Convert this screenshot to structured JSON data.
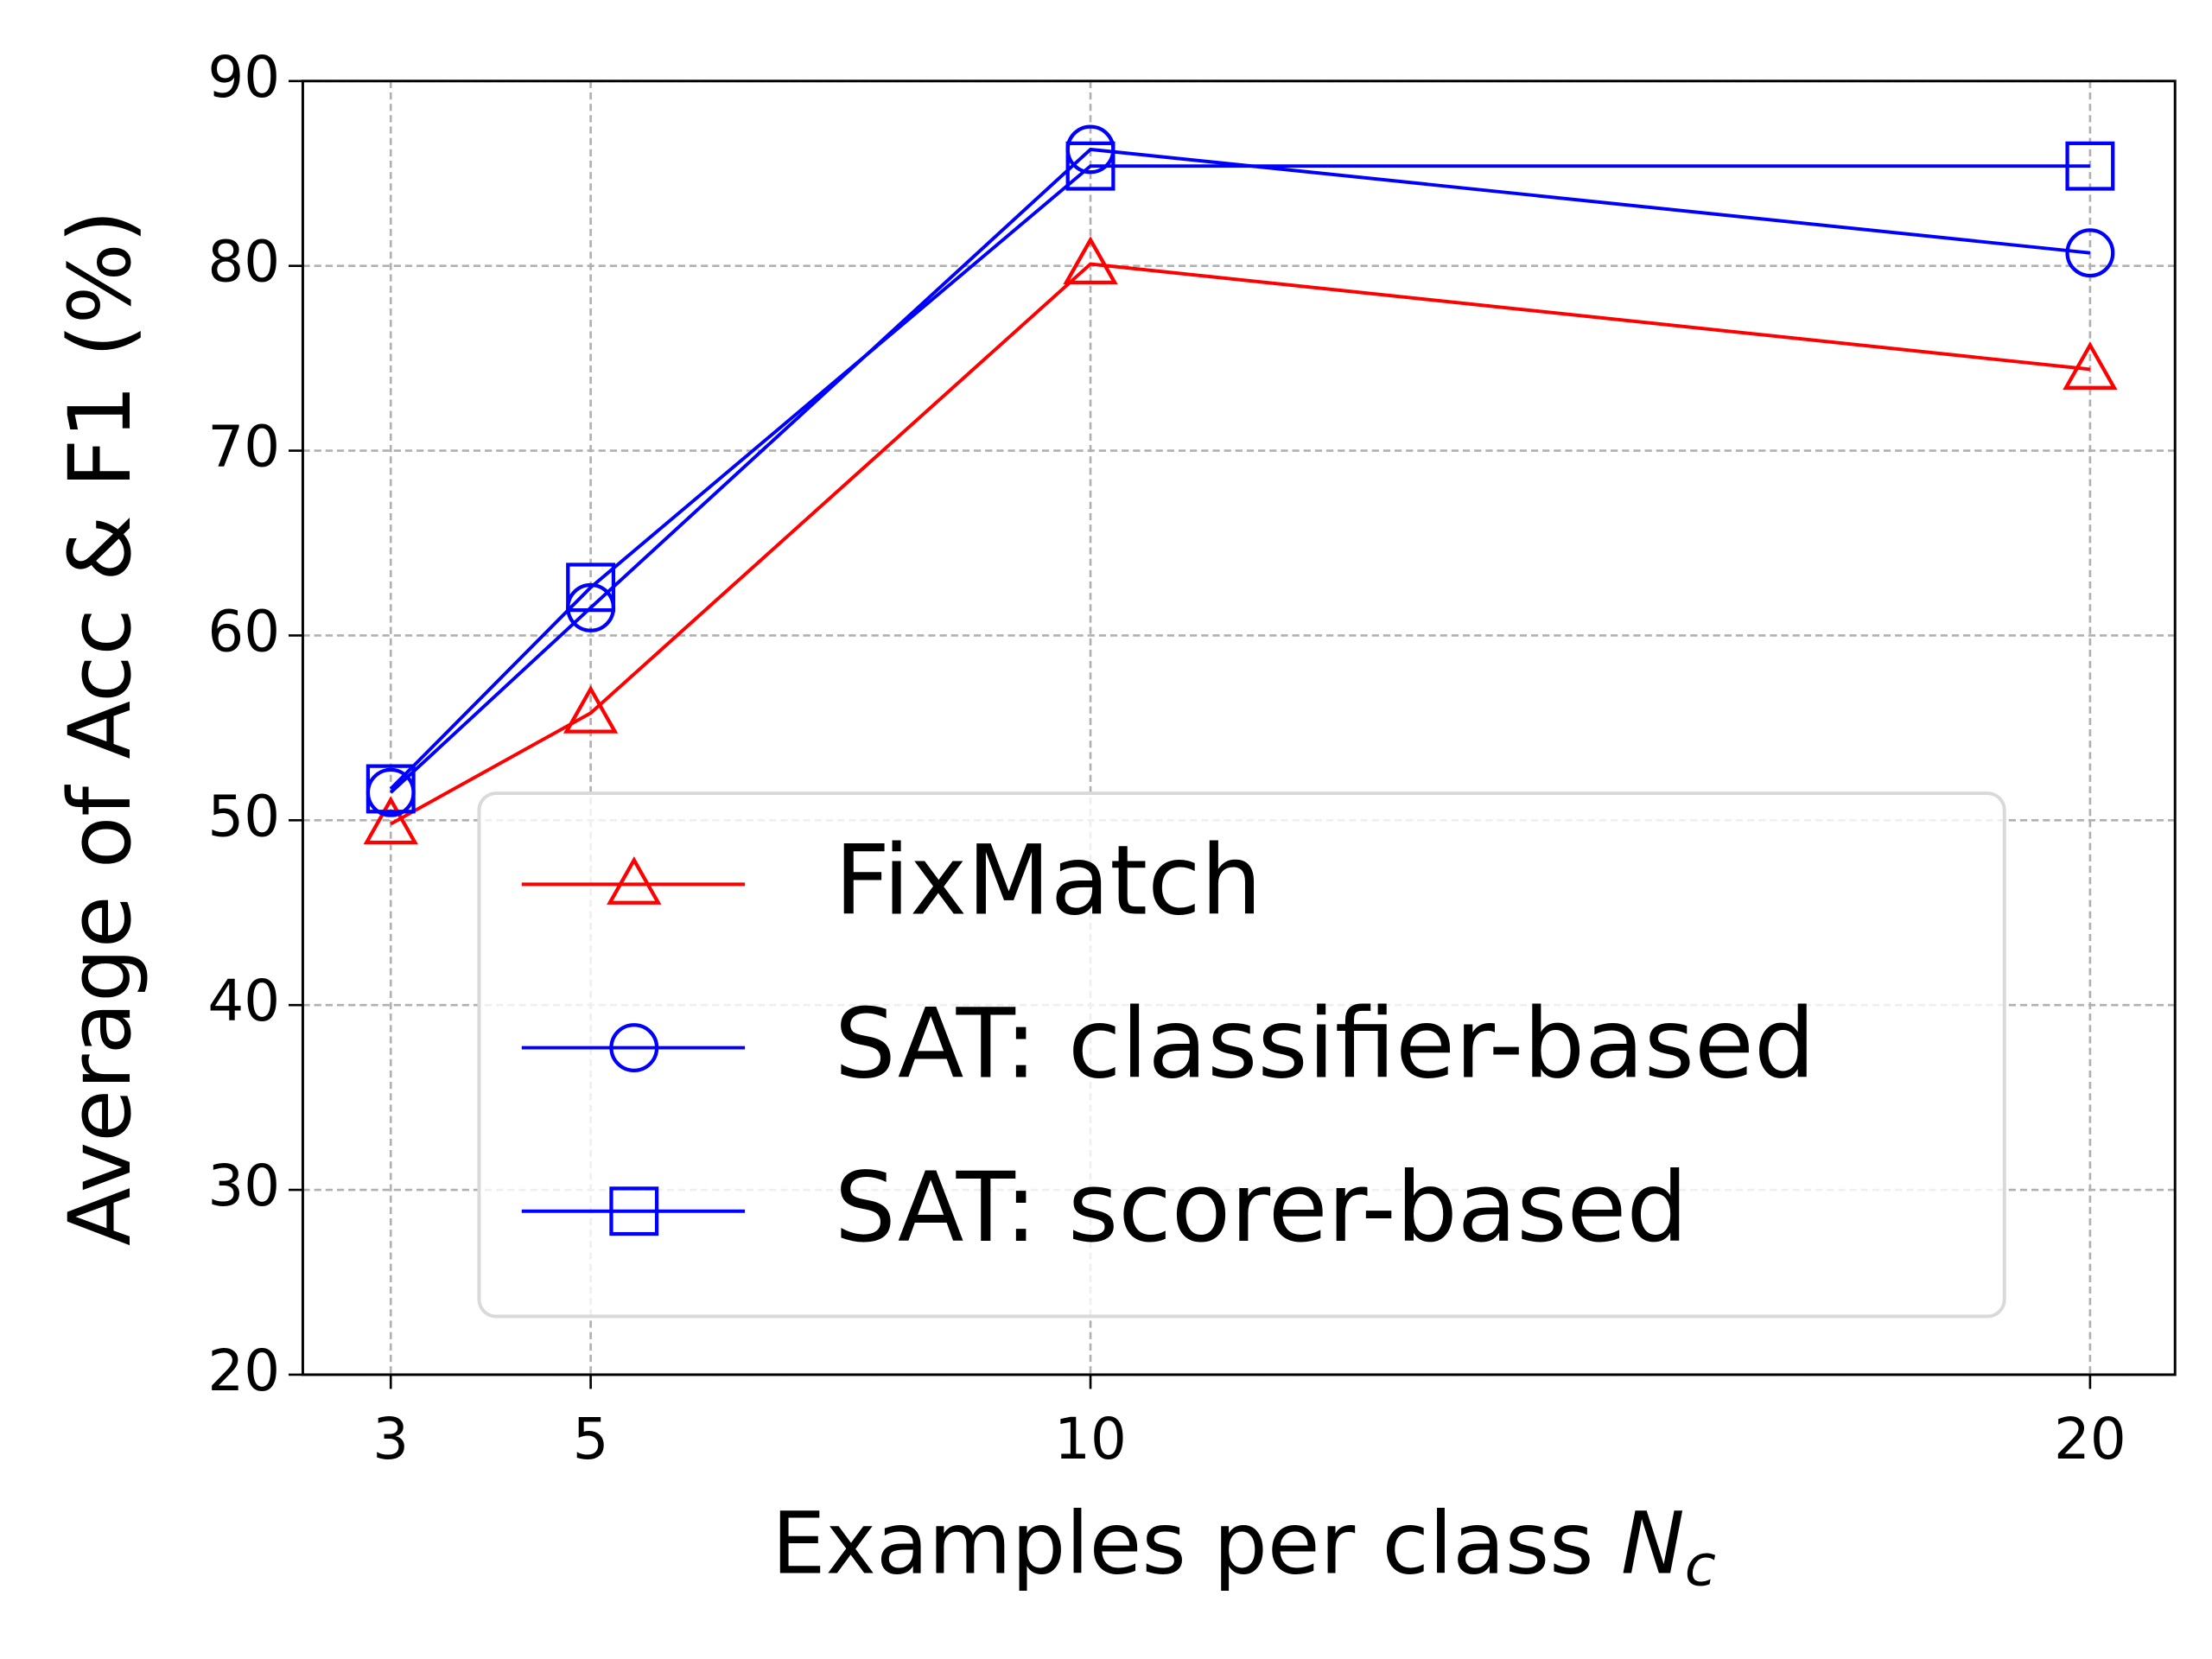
{
  "chart_data": {
    "type": "line",
    "x_label": "Examples per class",
    "x_label_symbol": "N",
    "x_label_subscript": "c",
    "y_label": "Average of Acc & F1 (%)",
    "x": [
      3,
      5,
      10,
      20
    ],
    "series": [
      {
        "name": "FixMatch",
        "color": "#ff0000",
        "marker": "triangle",
        "values": [
          49.8,
          55.8,
          80.1,
          74.4
        ]
      },
      {
        "name": "SAT: classifier-based",
        "color": "#0000ff",
        "marker": "circle",
        "values": [
          51.5,
          61.5,
          86.3,
          80.7
        ]
      },
      {
        "name": "SAT: scorer-based",
        "color": "#0000ff",
        "marker": "square",
        "values": [
          51.7,
          62.6,
          85.4,
          85.4
        ]
      }
    ],
    "xlim": [
      2.12,
      20.85
    ],
    "xticks": [
      3,
      5,
      10,
      20
    ],
    "ylim": [
      20,
      90
    ],
    "yticks": [
      20,
      30,
      40,
      50,
      60,
      70,
      80,
      90
    ],
    "grid": true,
    "legend": "lower right"
  }
}
